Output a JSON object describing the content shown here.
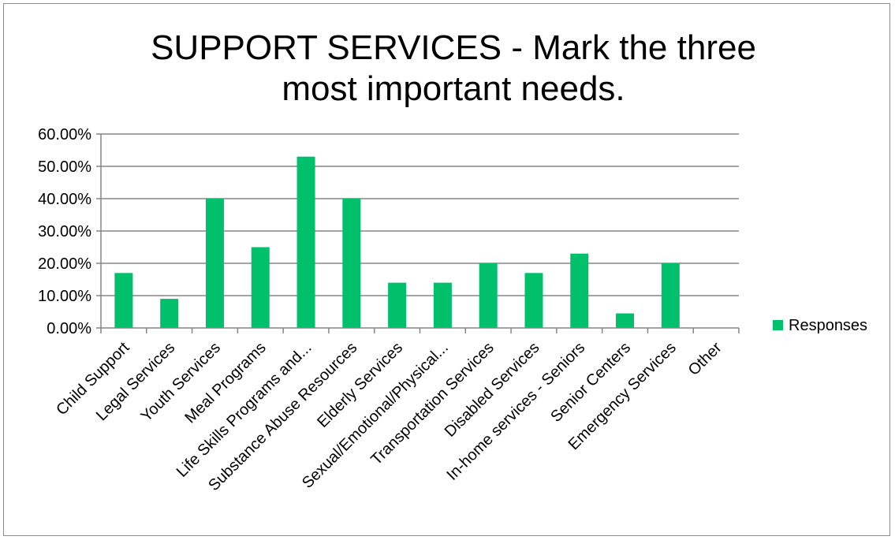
{
  "chart_data": {
    "type": "bar",
    "title_lines": [
      "SUPPORT SERVICES - Mark the three",
      "most important needs."
    ],
    "categories": [
      "Child Support",
      "Legal Services",
      "Youth Services",
      "Meal Programs",
      "Life Skills Programs and...",
      "Substance Abuse Resources",
      "Elderly Services",
      "Sexual/Emotional/Physical...",
      "Transportation Services",
      "Disabled Services",
      "In-home services - Seniors",
      "Senior Centers",
      "Emergency Services",
      "Other"
    ],
    "series": [
      {
        "name": "Responses",
        "values": [
          0.17,
          0.09,
          0.4,
          0.25,
          0.53,
          0.4,
          0.14,
          0.14,
          0.2,
          0.17,
          0.23,
          0.045,
          0.2,
          0
        ]
      }
    ],
    "ylim": [
      0,
      0.6
    ],
    "yticks": [
      "0.00%",
      "10.00%",
      "20.00%",
      "30.00%",
      "40.00%",
      "50.00%",
      "60.00%"
    ],
    "grid": true,
    "legend_position": "right",
    "colors": {
      "bar": "#00c06b",
      "grid": "#868686",
      "axis": "#868686"
    }
  }
}
